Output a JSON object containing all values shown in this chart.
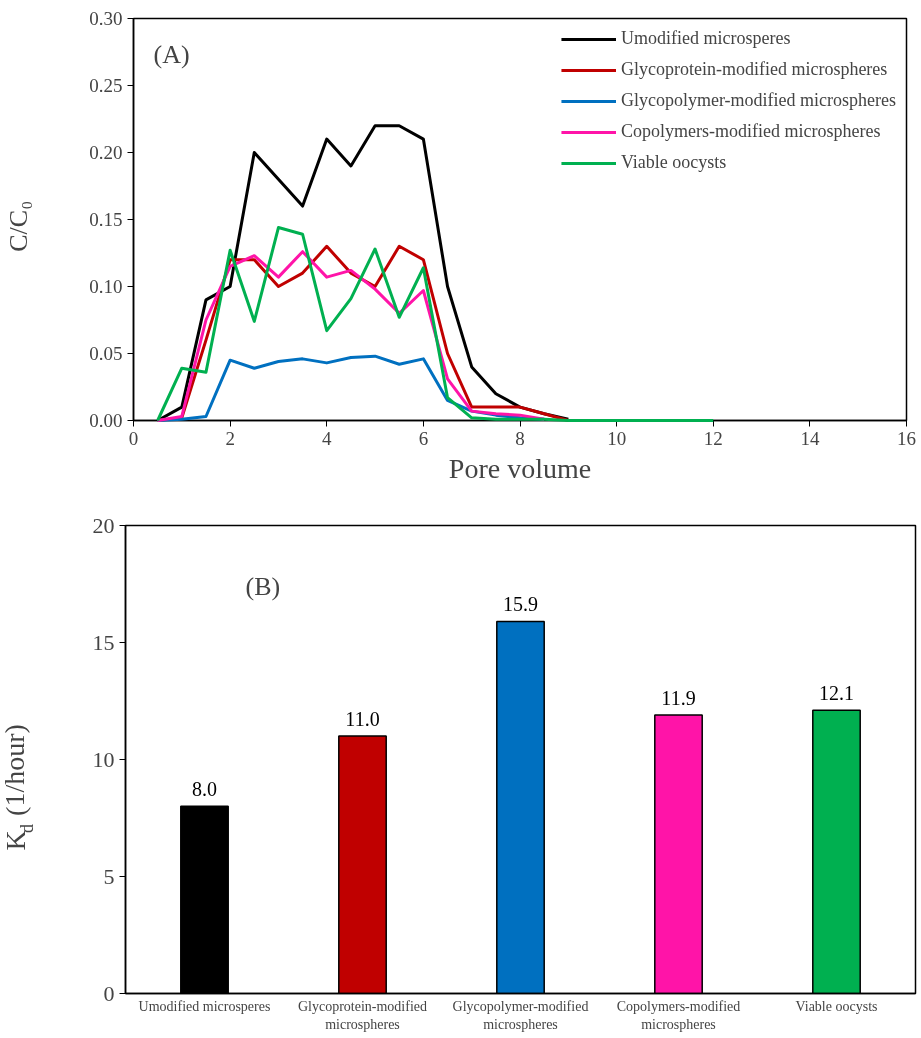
{
  "chart_data": [
    {
      "type": "line",
      "annotations": [
        "(A)"
      ],
      "xlabel": "Pore volume",
      "ylabel": "C/C₀",
      "x": [
        0.5,
        1,
        1.5,
        2,
        2.5,
        3,
        3.5,
        4,
        4.5,
        5,
        5.5,
        6,
        6.5,
        7,
        7.5,
        8,
        8.5,
        9,
        9.5,
        10,
        10.5,
        11,
        11.5,
        12
      ],
      "series": [
        {
          "name": "Umodified microsperes",
          "color": "#000000",
          "values": [
            0,
            0.01,
            0.09,
            0.1,
            0.2,
            0.18,
            0.16,
            0.21,
            0.19,
            0.22,
            0.22,
            0.21,
            0.1,
            0.04,
            0.02,
            0.01,
            0.005,
            0.001,
            null,
            null,
            null,
            null,
            null,
            null
          ]
        },
        {
          "name": "Glycoprotein-modified microspheres",
          "color": "#c00000",
          "values": [
            0,
            0.002,
            0.06,
            0.12,
            0.12,
            0.1,
            0.11,
            0.13,
            0.11,
            0.1,
            0.13,
            0.12,
            0.05,
            0.01,
            0.01,
            0.01,
            0.005,
            0,
            null,
            null,
            null,
            null,
            null,
            null
          ]
        },
        {
          "name": "Glycopolymer-modified microspheres",
          "color": "#0070c0",
          "values": [
            0,
            0.001,
            0.003,
            0.045,
            0.039,
            0.044,
            0.046,
            0.043,
            0.047,
            0.048,
            0.042,
            0.046,
            0.015,
            0.007,
            0.004,
            0.002,
            0.001,
            null,
            null,
            null,
            null,
            null,
            null,
            null
          ]
        },
        {
          "name": "Copolymers-modified microspheres",
          "color": "#ff14a8",
          "values": [
            0,
            0.003,
            0.075,
            0.115,
            0.123,
            0.107,
            0.126,
            0.107,
            0.112,
            0.098,
            0.08,
            0.097,
            0.031,
            0.007,
            0.005,
            0.004,
            0.001,
            null,
            null,
            null,
            null,
            null,
            null,
            null
          ]
        },
        {
          "name": "Viable oocysts",
          "color": "#00b050",
          "values": [
            0,
            0.039,
            0.036,
            0.127,
            0.074,
            0.144,
            0.139,
            0.067,
            0.091,
            0.128,
            0.077,
            0.114,
            0.017,
            0.002,
            0.001,
            0.001,
            0.001,
            0,
            0,
            0,
            0,
            0,
            0,
            0
          ]
        }
      ],
      "xlim": [
        0,
        16
      ],
      "xticks": [
        0,
        2,
        4,
        6,
        8,
        10,
        12,
        14,
        16
      ],
      "ylim": [
        0,
        0.3
      ],
      "yticks": [
        {
          "value": 0,
          "label": "0.00"
        },
        {
          "value": 0.05,
          "label": "0.05"
        },
        {
          "value": 0.1,
          "label": "0.10"
        },
        {
          "value": 0.15,
          "label": "0.15"
        },
        {
          "value": 0.2,
          "label": "0.20"
        },
        {
          "value": 0.25,
          "label": "0.25"
        },
        {
          "value": 0.3,
          "label": "0.30"
        }
      ],
      "grid": false,
      "legend": "top right",
      "marker": "none",
      "line_style": "solid"
    },
    {
      "type": "bar",
      "annotations": [
        "(B)"
      ],
      "ylabel": "K$_{d}$ (1/hour)",
      "categories": [
        "Umodified microsperes",
        "Glycoprotein-modified microspheres",
        "Glycopolymer-modified microspheres",
        "Copolymers-modified microspheres",
        "Viable oocysts"
      ],
      "values": [
        8.0,
        11.0,
        15.9,
        11.9,
        12.1
      ],
      "colors": [
        "#000000",
        "#c00000",
        "#0070c0",
        "#ff14a8",
        "#00b050"
      ],
      "value_labels": [
        "8.0",
        "11.0",
        "15.9",
        "11.9",
        "12.1"
      ],
      "ylim": [
        0,
        20
      ],
      "yticks": [
        0,
        5,
        10,
        15,
        20
      ],
      "grid": false
    }
  ]
}
